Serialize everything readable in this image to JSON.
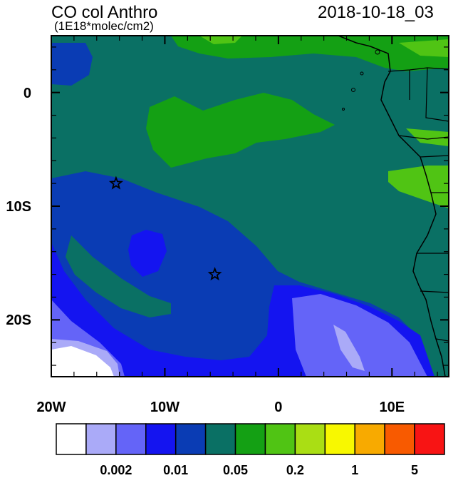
{
  "header": {
    "title": "CO col Anthro",
    "units": "(1E18*molec/cm2)",
    "datetime": "2018-10-18_03"
  },
  "map": {
    "lon_range": [
      -20,
      15
    ],
    "lat_range": [
      -25,
      5
    ],
    "x_ticks": [
      {
        "lon": -20,
        "label": "20W"
      },
      {
        "lon": -10,
        "label": "10W"
      },
      {
        "lon": 0,
        "label": "0"
      },
      {
        "lon": 10,
        "label": "10E"
      }
    ],
    "y_ticks": [
      {
        "lat": 0,
        "label": "0"
      },
      {
        "lat": -10,
        "label": "10S"
      },
      {
        "lat": -20,
        "label": "20S"
      }
    ],
    "markers": [
      {
        "type": "star",
        "lon": -14.3,
        "lat": -8.0
      },
      {
        "type": "star",
        "lon": -5.6,
        "lat": -16.0
      }
    ]
  },
  "colorbar": {
    "colors": [
      "#ffffff",
      "#aaaaf8",
      "#6464f8",
      "#1414f0",
      "#0a3cb4",
      "#0a7064",
      "#14a014",
      "#50c414",
      "#aade14",
      "#f8f800",
      "#f8aa00",
      "#f85a00",
      "#f81414"
    ],
    "labels": [
      {
        "boundary": 2,
        "text": "0.002"
      },
      {
        "boundary": 4,
        "text": "0.01"
      },
      {
        "boundary": 6,
        "text": "0.05"
      },
      {
        "boundary": 8,
        "text": "0.2"
      },
      {
        "boundary": 10,
        "text": "1"
      },
      {
        "boundary": 12,
        "text": "5"
      }
    ]
  },
  "colors": {
    "deep_blue": "#0a3cb4",
    "blue": "#1414f0",
    "mid_blue": "#6464f8",
    "light_blue": "#aaaaf8",
    "teal": "#0a7064",
    "green": "#14a014",
    "light_green": "#50c414"
  }
}
